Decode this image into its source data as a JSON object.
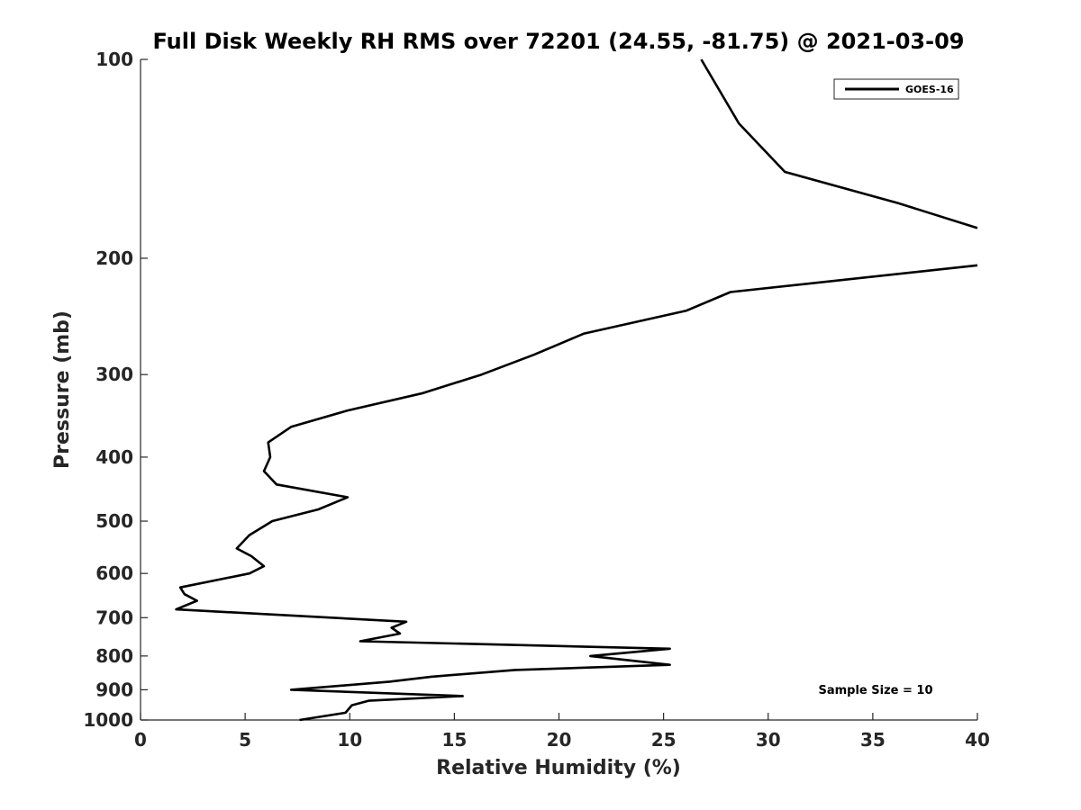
{
  "chart_data": {
    "type": "line",
    "title": "Full Disk Weekly RH RMS over 72201 (24.55, -81.75) @ 2021-03-09",
    "xlabel": "Relative Humidity (%)",
    "ylabel": "Pressure (mb)",
    "xlim": [
      0,
      40
    ],
    "ylim": [
      1000,
      100
    ],
    "y_scale": "log",
    "y_reversed": true,
    "xticks": [
      0,
      5,
      10,
      15,
      20,
      25,
      30,
      35,
      40
    ],
    "yticks": [
      100,
      200,
      300,
      400,
      500,
      600,
      700,
      800,
      900,
      1000
    ],
    "grid": false,
    "legend": {
      "placement": "top-right"
    },
    "annotation": "Sample Size = 10",
    "series": [
      {
        "name": "GOES-16",
        "color": "#000000",
        "points": [
          [
            7.6,
            1000
          ],
          [
            9.8,
            975
          ],
          [
            10.1,
            950
          ],
          [
            10.9,
            935
          ],
          [
            15.4,
            920
          ],
          [
            7.2,
            900
          ],
          [
            11.9,
            875
          ],
          [
            13.9,
            860
          ],
          [
            17.9,
            840
          ],
          [
            25.3,
            825
          ],
          [
            21.5,
            800
          ],
          [
            25.3,
            780
          ],
          [
            10.5,
            760
          ],
          [
            12.4,
            740
          ],
          [
            12.0,
            725
          ],
          [
            12.7,
            710
          ],
          [
            1.7,
            680
          ],
          [
            2.7,
            660
          ],
          [
            2.1,
            645
          ],
          [
            1.9,
            630
          ],
          [
            5.2,
            600
          ],
          [
            5.9,
            585
          ],
          [
            5.3,
            565
          ],
          [
            4.6,
            550
          ],
          [
            5.2,
            525
          ],
          [
            6.3,
            500
          ],
          [
            8.5,
            480
          ],
          [
            9.9,
            460
          ],
          [
            6.5,
            440
          ],
          [
            5.9,
            420
          ],
          [
            6.2,
            400
          ],
          [
            6.1,
            380
          ],
          [
            7.2,
            360
          ],
          [
            9.9,
            340
          ],
          [
            13.5,
            320
          ],
          [
            16.3,
            300
          ],
          [
            18.8,
            280
          ],
          [
            21.2,
            260
          ],
          [
            26.1,
            240
          ],
          [
            28.2,
            225
          ],
          [
            40.0,
            205
          ]
        ]
      },
      {
        "name": "GOES-16",
        "color": "#000000",
        "points": [
          [
            40.0,
            180
          ],
          [
            36.2,
            165
          ],
          [
            30.8,
            148
          ],
          [
            28.6,
            125
          ],
          [
            26.8,
            100
          ]
        ]
      }
    ]
  }
}
